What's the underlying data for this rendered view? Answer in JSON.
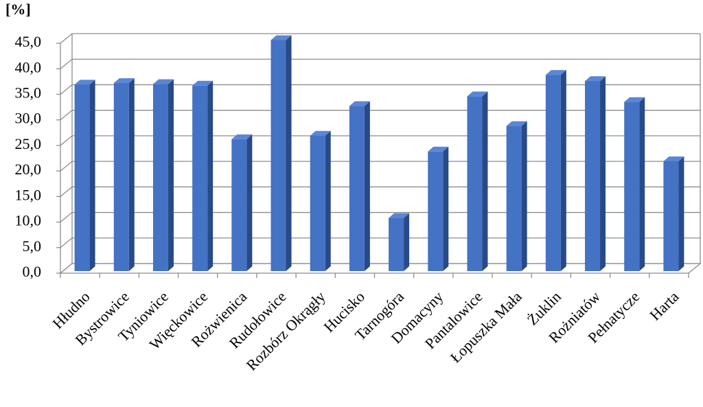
{
  "chart_data": {
    "type": "bar3d",
    "y_label": "[%]",
    "categories": [
      "Hłudno",
      "Bystrowice",
      "Tyniowice",
      "Więckowice",
      "Rożwienica",
      "Rudołowice",
      "Rozbórz Okrągły",
      "Hucisko",
      "Tarnogóra",
      "Domacyny",
      "Pantalowice",
      "Łopuszka Mała",
      "Żuklin",
      "Rożniatów",
      "Pełnatycze",
      "Harta"
    ],
    "values": [
      36.5,
      36.8,
      36.6,
      36.3,
      25.8,
      45.2,
      26.5,
      32.3,
      10.4,
      23.4,
      34.2,
      28.4,
      38.4,
      37.2,
      33.1,
      21.5
    ],
    "color": "#4472c4",
    "ylim": [
      0,
      45
    ],
    "yticks": [
      {
        "value": 0,
        "label": "0,0"
      },
      {
        "value": 5,
        "label": "5,0"
      },
      {
        "value": 10,
        "label": "10,0"
      },
      {
        "value": 15,
        "label": "15,0"
      },
      {
        "value": 20,
        "label": "20,0"
      },
      {
        "value": 25,
        "label": "25,0"
      },
      {
        "value": 30,
        "label": "30,0"
      },
      {
        "value": 35,
        "label": "35,0"
      },
      {
        "value": 40,
        "label": "40,0"
      },
      {
        "value": 45,
        "label": "45,0"
      }
    ],
    "grid": true
  }
}
